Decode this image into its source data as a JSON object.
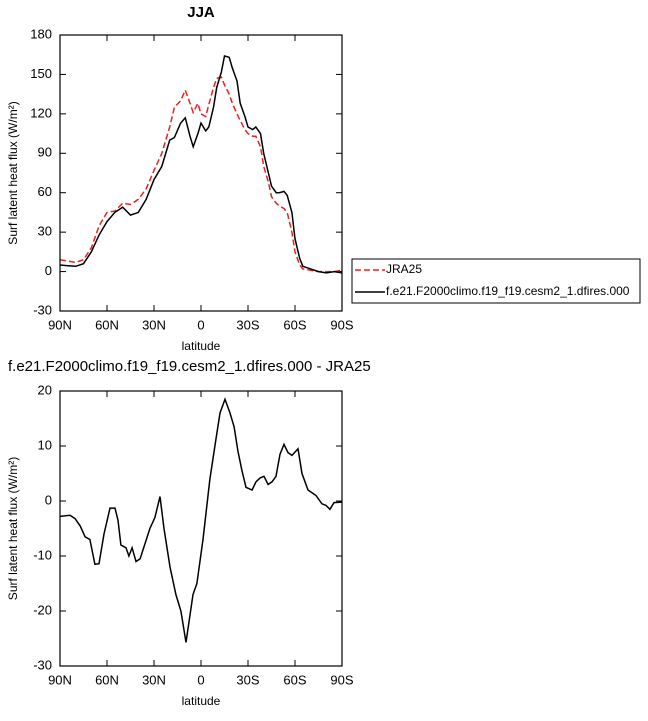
{
  "chart_data": [
    {
      "type": "line",
      "title": "JJA",
      "x_label": "latitude",
      "y_label": "Surf latent heat flux (W/m²)",
      "xlim": [
        90,
        -90
      ],
      "xticks": [
        {
          "value": 90,
          "label": "90N"
        },
        {
          "value": 60,
          "label": "60N"
        },
        {
          "value": 30,
          "label": "30N"
        },
        0,
        {
          "value": -30,
          "label": "30S"
        },
        {
          "value": -60,
          "label": "60S"
        },
        {
          "value": -90,
          "label": "90S"
        }
      ],
      "ylim": [
        -30,
        180
      ],
      "yticks": [
        -30,
        0,
        30,
        60,
        90,
        120,
        150,
        180
      ],
      "legend": "right",
      "x": [
        90,
        85,
        80,
        75,
        70,
        65,
        60,
        55,
        50,
        45,
        40,
        35,
        30,
        25,
        20,
        17,
        13,
        10,
        7,
        5,
        2,
        0,
        -3,
        -5,
        -8,
        -10,
        -13,
        -15,
        -18,
        -20,
        -23,
        -25,
        -28,
        -30,
        -33,
        -35,
        -38,
        -40,
        -43,
        -45,
        -48,
        -50,
        -53,
        -55,
        -58,
        -60,
        -63,
        -65,
        -70,
        -75,
        -80,
        -85,
        -90
      ],
      "series": [
        {
          "name": "JRA25",
          "color": "#e8231f",
          "dashed": true,
          "values": [
            9,
            8,
            7,
            9,
            18,
            35,
            45,
            46,
            52,
            51,
            55,
            63,
            77,
            90,
            110,
            125,
            130,
            138,
            128,
            121,
            128,
            120,
            118,
            127,
            140,
            147,
            148,
            142,
            135,
            128,
            120,
            115,
            108,
            105,
            103,
            103,
            95,
            80,
            68,
            57,
            52,
            50,
            48,
            45,
            30,
            15,
            5,
            2,
            1,
            0,
            0,
            0,
            1
          ]
        },
        {
          "name": "f.e21.F2000climo.f19_f19.cesm2_1.dfires.000",
          "color": "#000000",
          "dashed": false,
          "values": [
            5,
            4.5,
            4,
            6,
            15,
            28,
            38,
            45,
            49,
            43,
            45,
            55,
            70,
            80,
            100,
            102,
            113,
            117,
            103,
            95,
            105,
            113,
            107,
            110,
            125,
            140,
            152,
            164,
            163,
            155,
            145,
            128,
            118,
            110,
            108,
            110,
            105,
            90,
            75,
            65,
            60,
            60,
            61,
            58,
            45,
            25,
            10,
            4,
            2,
            0,
            -1,
            0,
            -1
          ]
        }
      ]
    },
    {
      "type": "line",
      "title": "f.e21.F2000climo.f19_f19.cesm2_1.dfires.000 - JRA25",
      "x_label": "latitude",
      "y_label": "Surf latent heat flux (W/m²)",
      "xlim": [
        90,
        -90
      ],
      "xticks": [
        {
          "value": 90,
          "label": "90N"
        },
        {
          "value": 60,
          "label": "60N"
        },
        {
          "value": 30,
          "label": "30N"
        },
        0,
        {
          "value": -30,
          "label": "30S"
        },
        {
          "value": -60,
          "label": "60S"
        },
        {
          "value": -90,
          "label": "90S"
        }
      ],
      "ylim": [
        -30,
        20
      ],
      "yticks": [
        -30,
        -20,
        -10,
        0,
        10,
        20
      ],
      "x": [
        90,
        83.6,
        80.4,
        77.2,
        74,
        70.9,
        67.7,
        65.1,
        61.9,
        58.1,
        54.9,
        53,
        51.1,
        47.9,
        46,
        44,
        41.5,
        38.9,
        32.6,
        29.4,
        26.2,
        23.6,
        19.8,
        16,
        12.8,
        9.6,
        5.1,
        2.6,
        -1.3,
        -5.7,
        -8.9,
        -12.1,
        -15.3,
        -18.5,
        -21.1,
        -23.6,
        -26.2,
        -28.7,
        -32.6,
        -35.1,
        -37.7,
        -40.2,
        -42.8,
        -45.3,
        -47.9,
        -50.4,
        -53,
        -55.5,
        -58.1,
        -61.9,
        -64.5,
        -68.3,
        -73.4,
        -77.2,
        -79.8,
        -82.3,
        -84.9,
        -90
      ],
      "series": [
        {
          "color": "#000000",
          "dashed": false,
          "values": [
            -2.8,
            -2.6,
            -3.2,
            -4.5,
            -6.5,
            -7,
            -11.5,
            -11.4,
            -6,
            -1.3,
            -1.3,
            -3.5,
            -8,
            -8.5,
            -10,
            -8.5,
            -11,
            -10.5,
            -5,
            -3,
            0.8,
            -5,
            -12,
            -17,
            -20,
            -25.7,
            -17,
            -15,
            -7,
            4,
            10,
            16,
            18.5,
            16,
            13.5,
            9,
            5.5,
            2.5,
            2,
            3.5,
            4.2,
            4.5,
            3,
            3.5,
            4.5,
            8.5,
            10.3,
            8.8,
            8.3,
            9.5,
            5,
            2,
            1,
            -0.5,
            -0.8,
            -1.5,
            -0.3,
            -0.2
          ]
        }
      ]
    }
  ]
}
